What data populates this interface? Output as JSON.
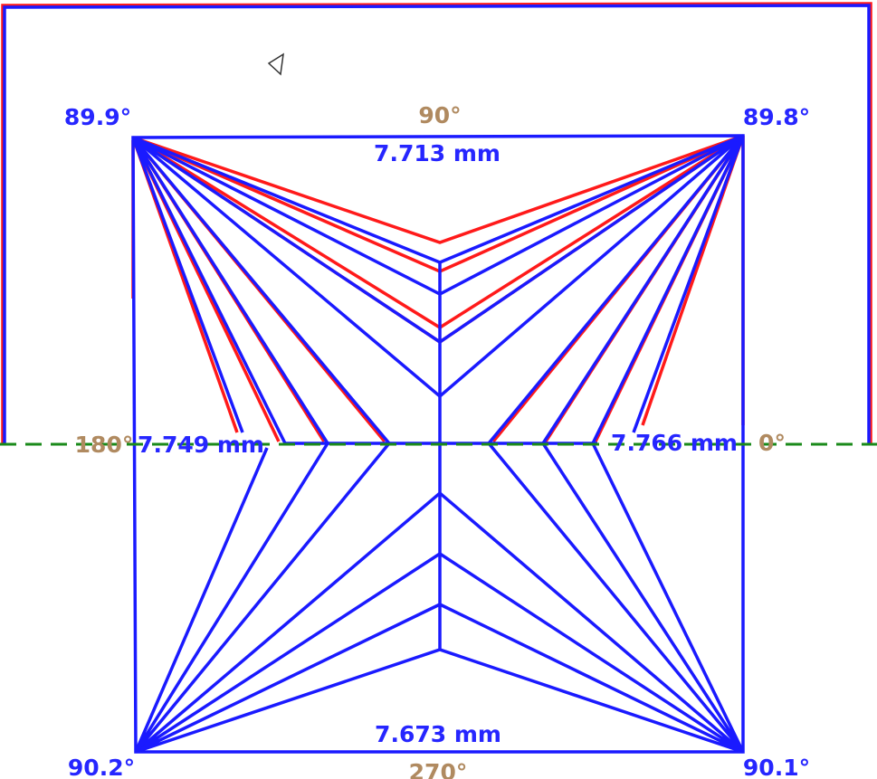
{
  "corners": {
    "top_left": "89.9°",
    "top_right": "89.8°",
    "bottom_left": "90.2°",
    "bottom_right": "90.1°"
  },
  "directions": {
    "top": "90°",
    "left": "180°",
    "right": "0°",
    "bottom": "270°"
  },
  "measurements": {
    "top": "7.713 mm",
    "left": "7.749 mm",
    "right": "7.766 mm",
    "bottom": "7.673 mm"
  }
}
